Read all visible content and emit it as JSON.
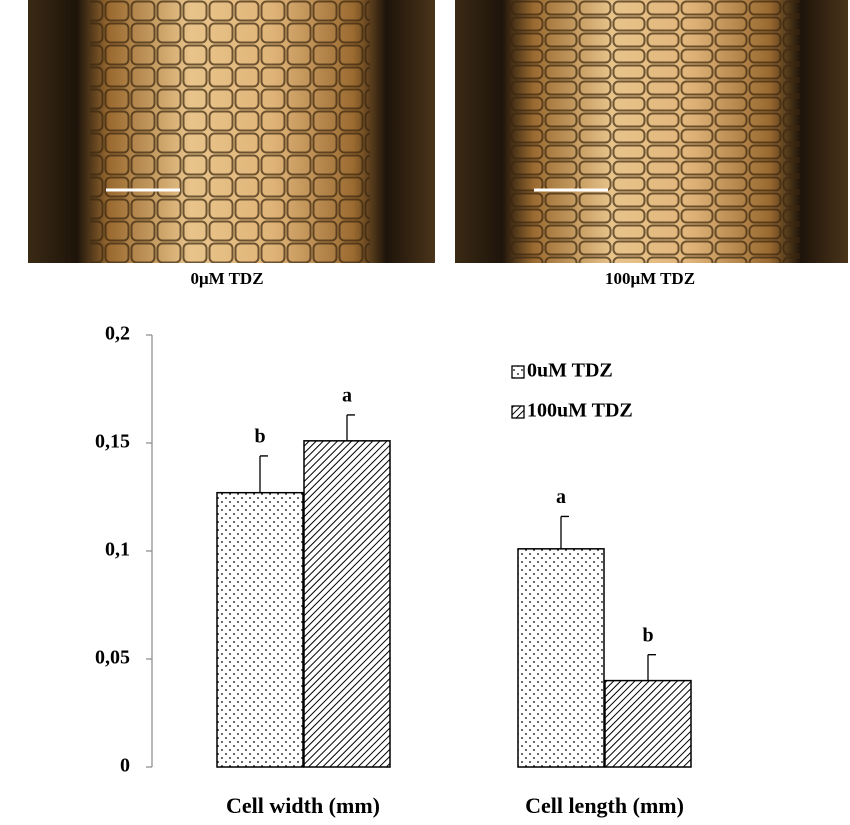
{
  "images": [
    {
      "caption": "0μM TDZ"
    },
    {
      "caption": "100μM TDZ"
    }
  ],
  "chart_data": {
    "type": "bar",
    "categories": [
      "Cell width (mm)",
      "Cell length (mm)"
    ],
    "series": [
      {
        "name": "0uM TDZ",
        "color": "#000000",
        "pattern": "dots",
        "values": [
          0.127,
          0.101
        ],
        "errors": [
          0.017,
          0.015
        ],
        "letters": [
          "b",
          "a"
        ]
      },
      {
        "name": "100uM TDZ",
        "color": "#000000",
        "pattern": "hatch",
        "values": [
          0.151,
          0.04
        ],
        "errors": [
          0.012,
          0.012
        ],
        "letters": [
          "a",
          "b"
        ]
      }
    ],
    "ylim": [
      0,
      0.2
    ],
    "yticks": [
      0,
      {
        "value": 0.05,
        "label": "0,05"
      },
      {
        "value": 0.1,
        "label": "0,1"
      },
      {
        "value": 0.15,
        "label": "0,15"
      },
      {
        "value": 0.2,
        "label": "0,2"
      }
    ],
    "grid": false
  }
}
